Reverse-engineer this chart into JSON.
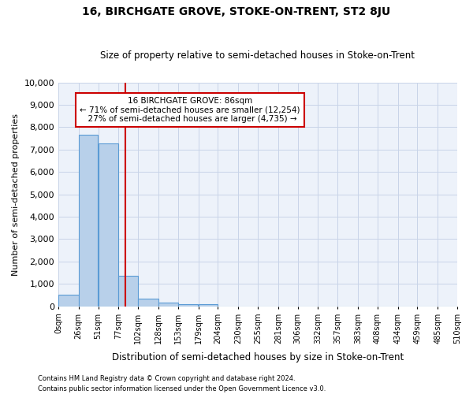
{
  "title": "16, BIRCHGATE GROVE, STOKE-ON-TRENT, ST2 8JU",
  "subtitle": "Size of property relative to semi-detached houses in Stoke-on-Trent",
  "xlabel": "Distribution of semi-detached houses by size in Stoke-on-Trent",
  "ylabel": "Number of semi-detached properties",
  "footnote1": "Contains HM Land Registry data © Crown copyright and database right 2024.",
  "footnote2": "Contains public sector information licensed under the Open Government Licence v3.0.",
  "property_size": 86,
  "property_label": "16 BIRCHGATE GROVE: 86sqm",
  "pct_smaller": 71,
  "count_smaller": 12254,
  "pct_larger": 27,
  "count_larger": 4735,
  "bin_edges": [
    0,
    26,
    51,
    77,
    102,
    128,
    153,
    179,
    204,
    230,
    255,
    281,
    306,
    332,
    357,
    383,
    408,
    434,
    459,
    485,
    510
  ],
  "bin_labels": [
    "0sqm",
    "26sqm",
    "51sqm",
    "77sqm",
    "102sqm",
    "128sqm",
    "153sqm",
    "179sqm",
    "204sqm",
    "230sqm",
    "255sqm",
    "281sqm",
    "306sqm",
    "332sqm",
    "357sqm",
    "383sqm",
    "408sqm",
    "434sqm",
    "459sqm",
    "485sqm",
    "510sqm"
  ],
  "bar_heights": [
    530,
    7650,
    7280,
    1370,
    330,
    160,
    100,
    80,
    0,
    0,
    0,
    0,
    0,
    0,
    0,
    0,
    0,
    0,
    0,
    0
  ],
  "bar_color": "#b8d0ea",
  "bar_edge_color": "#5b9bd5",
  "vline_x": 86,
  "vline_color": "#cc0000",
  "annotation_box_color": "#cc0000",
  "ylim": [
    0,
    10000
  ],
  "yticks": [
    0,
    1000,
    2000,
    3000,
    4000,
    5000,
    6000,
    7000,
    8000,
    9000,
    10000
  ],
  "grid_color": "#c8d4e8",
  "bg_color": "#edf2fa"
}
